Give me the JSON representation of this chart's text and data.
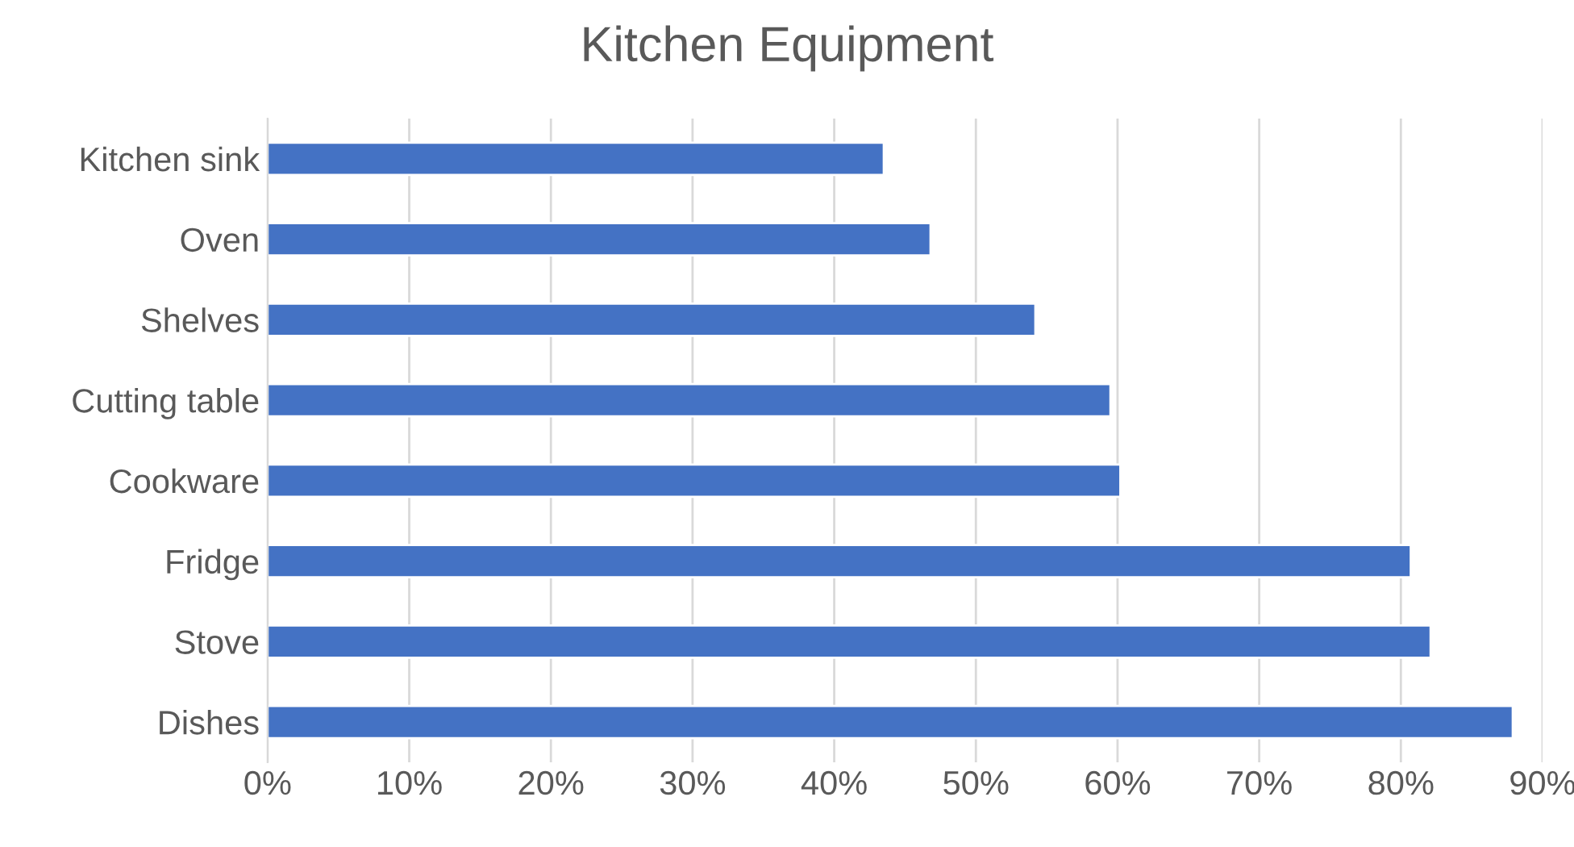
{
  "chart_data": {
    "type": "bar",
    "orientation": "horizontal",
    "title": "Kitchen Equipment",
    "categories": [
      "Kitchen sink",
      "Oven",
      "Shelves",
      "Cutting table",
      "Cookware",
      "Fridge",
      "Stove",
      "Dishes"
    ],
    "series": [
      {
        "color": "#4472c4",
        "values": [
          43.5,
          46.8,
          54.2,
          59.5,
          60.2,
          80.7,
          82.1,
          87.9
        ]
      }
    ],
    "xlim": [
      0,
      90
    ],
    "xticks": [
      {
        "value": 0,
        "label": "0%"
      },
      {
        "value": 10,
        "label": "10%"
      },
      {
        "value": 20,
        "label": "20%"
      },
      {
        "value": 30,
        "label": "30%"
      },
      {
        "value": 40,
        "label": "40%"
      },
      {
        "value": 50,
        "label": "50%"
      },
      {
        "value": 60,
        "label": "60%"
      },
      {
        "value": 70,
        "label": "70%"
      },
      {
        "value": 80,
        "label": "80%"
      },
      {
        "value": 90,
        "label": "90%"
      }
    ],
    "grid": "x",
    "legend": false
  }
}
